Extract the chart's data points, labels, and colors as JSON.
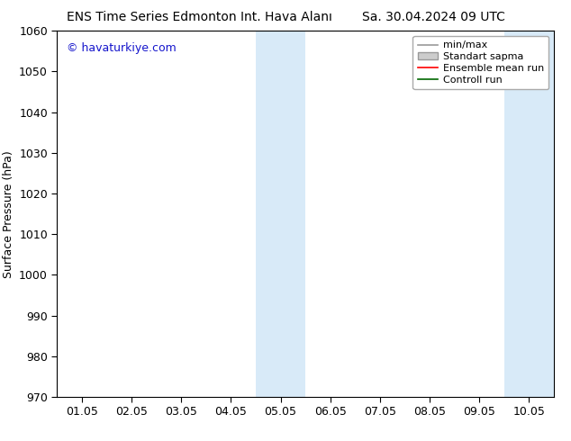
{
  "title_left": "ENS Time Series Edmonton Int. Hava Alanı",
  "title_right": "Sa. 30.04.2024 09 UTC",
  "ylabel": "Surface Pressure (hPa)",
  "ylim": [
    970,
    1060
  ],
  "yticks": [
    970,
    980,
    990,
    1000,
    1010,
    1020,
    1030,
    1040,
    1050,
    1060
  ],
  "xlabels": [
    "01.05",
    "02.05",
    "03.05",
    "04.05",
    "05.05",
    "06.05",
    "07.05",
    "08.05",
    "09.05",
    "10.05"
  ],
  "n_xticks": 10,
  "shaded_bands": [
    {
      "xmin": 3.5,
      "xmax": 4.5,
      "color": "#d8eaf8"
    },
    {
      "xmin": 8.5,
      "xmax": 9.5,
      "color": "#d8eaf8"
    }
  ],
  "watermark_text": "© havaturkiye.com",
  "watermark_color": "#1515cc",
  "background_color": "#ffffff",
  "legend_entries": [
    {
      "label": "min/max",
      "color": "#999999",
      "lw": 1.2,
      "type": "line"
    },
    {
      "label": "Standart sapma",
      "facecolor": "#cccccc",
      "edgecolor": "#999999",
      "type": "fill"
    },
    {
      "label": "Ensemble mean run",
      "color": "#ff0000",
      "lw": 1.2,
      "type": "line"
    },
    {
      "label": "Controll run",
      "color": "#006600",
      "lw": 1.2,
      "type": "line"
    }
  ],
  "title_fontsize": 10,
  "ylabel_fontsize": 9,
  "tick_fontsize": 9,
  "watermark_fontsize": 9,
  "legend_fontsize": 8
}
